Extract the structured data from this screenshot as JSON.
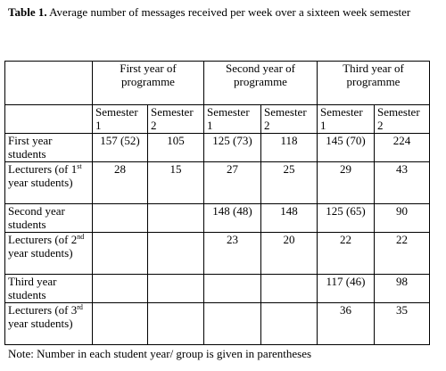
{
  "caption": {
    "label": "Table 1.",
    "text": " Average number of messages received per week over a sixteen week semester"
  },
  "headers": {
    "years": [
      "First year of programme",
      "Second year of programme",
      "Third year of programme"
    ],
    "semesters": [
      "Semester 1",
      "Semester 2",
      "Semester 1",
      "Semester 2",
      "Semester 1",
      "Semester 2"
    ]
  },
  "rows": [
    {
      "label": "First year students",
      "values": [
        "157 (52)",
        "105",
        "125 (73)",
        "118",
        "145 (70)",
        "224"
      ]
    },
    {
      "label_pre": "Lecturers (of ",
      "label_num": "1",
      "label_sup": "st",
      "label_post": " year students)",
      "values": [
        "28",
        "15",
        "27",
        "25",
        "29",
        "43"
      ]
    },
    {
      "label": "Second year students",
      "values": [
        "",
        "",
        "148 (48)",
        "148",
        "125 (65)",
        "90"
      ]
    },
    {
      "label_pre": "Lecturers (of ",
      "label_num": "2",
      "label_sup": "nd",
      "label_post": " year students)",
      "values": [
        "",
        "",
        "23",
        "20",
        "22",
        "22"
      ]
    },
    {
      "label": "Third year students",
      "values": [
        "",
        "",
        "",
        "",
        "117 (46)",
        "98"
      ]
    },
    {
      "label_pre": "Lecturers (of ",
      "label_num": "3",
      "label_sup": "rd",
      "label_post": " year students)",
      "values": [
        "",
        "",
        "",
        "",
        "36",
        "35"
      ]
    }
  ],
  "note": "Note: Number in each student year/ group is given in parentheses"
}
